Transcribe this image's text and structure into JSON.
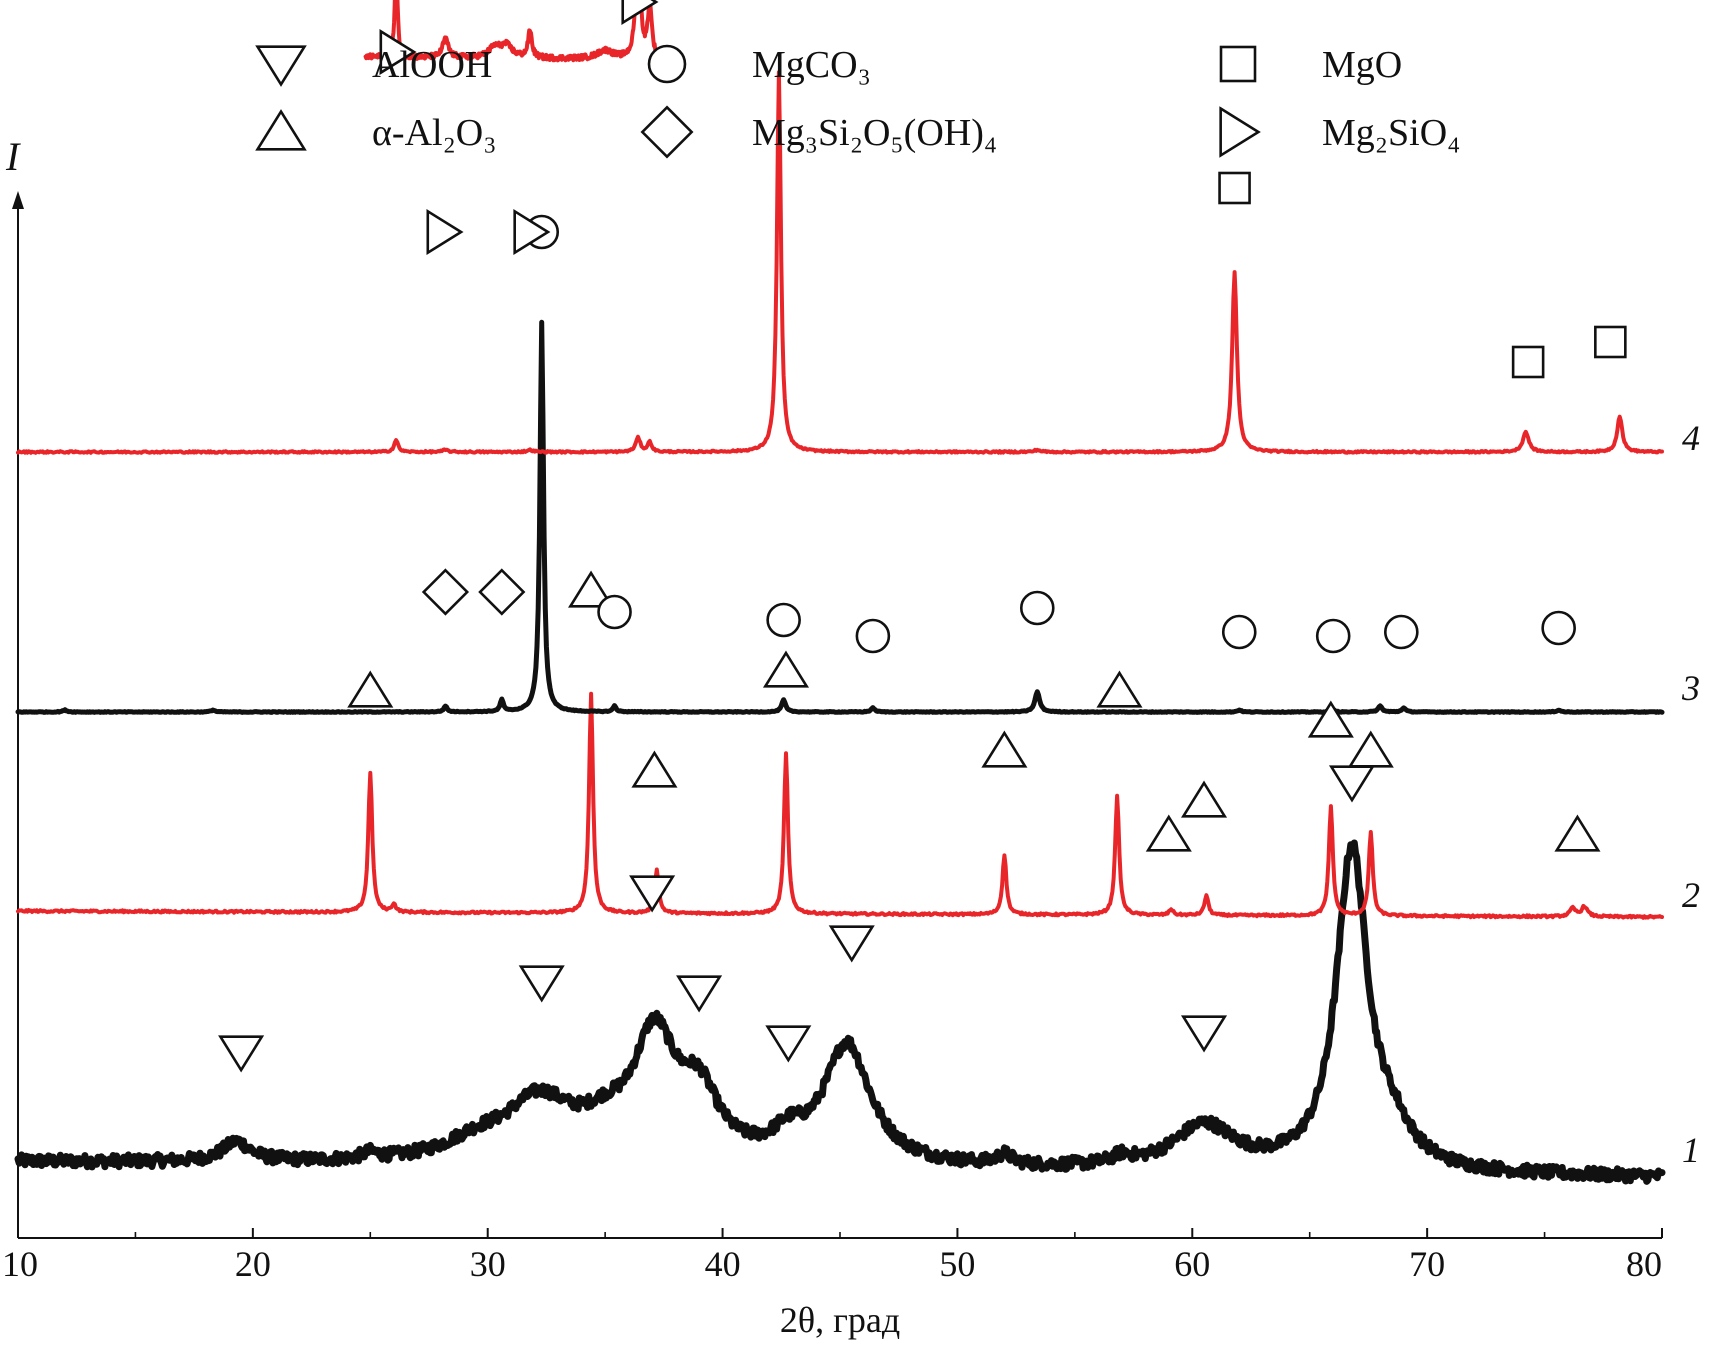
{
  "chart_data": {
    "type": "line",
    "title": "",
    "xlabel": "2θ, град",
    "ylabel": "I",
    "xlim": [
      10,
      80
    ],
    "xticks": [
      "10",
      "20",
      "30",
      "40",
      "50",
      "60",
      "70",
      "80"
    ],
    "grid": false,
    "legend_placement": "top",
    "legend": [
      {
        "marker": "triangle-down",
        "label": "AlOOH"
      },
      {
        "marker": "circle",
        "label": "MgCO₃"
      },
      {
        "marker": "square",
        "label": "MgO"
      },
      {
        "marker": "triangle-up",
        "label": "α-Al₂O₃"
      },
      {
        "marker": "diamond",
        "label": "Mg₃Si₂O₅(OH)₄"
      },
      {
        "marker": "triangle-right",
        "label": "Mg₂SiO₄"
      }
    ],
    "colors": {
      "red": "#e8262a",
      "black": "#111111"
    },
    "series": [
      {
        "name": "1",
        "color": "#111111",
        "stroke": 7,
        "noise": 0.03,
        "baseline": [
          [
            10,
            0.05
          ],
          [
            30,
            0.03
          ],
          [
            80,
            -0.03
          ]
        ],
        "peaks": [
          [
            19.3,
            0.1,
            0.7
          ],
          [
            25.0,
            0.03,
            0.4
          ],
          [
            29.5,
            0.08,
            1.6
          ],
          [
            32.2,
            0.3,
            1.8
          ],
          [
            35.0,
            0.12,
            1.2
          ],
          [
            37.1,
            0.6,
            1.1
          ],
          [
            39.0,
            0.3,
            1.0
          ],
          [
            42.8,
            0.1,
            0.8
          ],
          [
            45.3,
            0.6,
            1.2
          ],
          [
            52.0,
            0.05,
            0.4
          ],
          [
            57.0,
            0.04,
            0.5
          ],
          [
            60.5,
            0.22,
            1.6
          ],
          [
            66.8,
            1.6,
            0.8
          ],
          [
            68.5,
            0.15,
            1.0
          ]
        ],
        "markers": [
          {
            "type": "triangle-down",
            "x": 19.5,
            "y": 0.6
          },
          {
            "type": "triangle-down",
            "x": 32.3,
            "y": 0.95
          },
          {
            "type": "triangle-down",
            "x": 37.0,
            "y": 1.4
          },
          {
            "type": "triangle-down",
            "x": 39.0,
            "y": 0.9
          },
          {
            "type": "triangle-down",
            "x": 42.8,
            "y": 0.65
          },
          {
            "type": "triangle-down",
            "x": 45.5,
            "y": 1.15
          },
          {
            "type": "triangle-down",
            "x": 60.5,
            "y": 0.7
          },
          {
            "type": "triangle-down",
            "x": 66.8,
            "y": 1.95
          }
        ]
      },
      {
        "name": "2",
        "color": "#e8262a",
        "stroke": 4,
        "noise": 0.005,
        "baseline": [
          [
            10,
            0.0
          ],
          [
            80,
            -0.03
          ]
        ],
        "peaks": [
          [
            25.0,
            0.7,
            0.1
          ],
          [
            26.0,
            0.04,
            0.1
          ],
          [
            34.4,
            1.1,
            0.1
          ],
          [
            37.2,
            0.22,
            0.1
          ],
          [
            42.7,
            0.8,
            0.1
          ],
          [
            52.0,
            0.3,
            0.1
          ],
          [
            56.8,
            0.6,
            0.1
          ],
          [
            59.1,
            0.03,
            0.1
          ],
          [
            60.6,
            0.1,
            0.1
          ],
          [
            65.9,
            0.55,
            0.1
          ],
          [
            67.6,
            0.42,
            0.1
          ],
          [
            76.2,
            0.04,
            0.15
          ],
          [
            76.7,
            0.05,
            0.15
          ]
        ],
        "markers": [
          {
            "type": "triangle-up",
            "x": 25.0,
            "y": 1.1
          },
          {
            "type": "triangle-up",
            "x": 34.4,
            "y": 1.6
          },
          {
            "type": "triangle-up",
            "x": 37.1,
            "y": 0.7
          },
          {
            "type": "triangle-up",
            "x": 42.7,
            "y": 1.2
          },
          {
            "type": "triangle-up",
            "x": 52.0,
            "y": 0.8
          },
          {
            "type": "triangle-up",
            "x": 56.9,
            "y": 1.1
          },
          {
            "type": "triangle-up",
            "x": 59.0,
            "y": 0.38
          },
          {
            "type": "triangle-up",
            "x": 60.5,
            "y": 0.55
          },
          {
            "type": "triangle-up",
            "x": 65.9,
            "y": 0.95
          },
          {
            "type": "triangle-up",
            "x": 67.6,
            "y": 0.8
          },
          {
            "type": "triangle-up",
            "x": 76.4,
            "y": 0.38
          }
        ]
      },
      {
        "name": "3",
        "color": "#111111",
        "stroke": 5,
        "noise": 0.002,
        "baseline": [
          [
            10,
            0.0
          ],
          [
            80,
            0.0
          ]
        ],
        "peaks": [
          [
            12.0,
            0.01,
            0.1
          ],
          [
            18.3,
            0.01,
            0.1
          ],
          [
            28.2,
            0.03,
            0.08
          ],
          [
            30.6,
            0.06,
            0.08
          ],
          [
            32.3,
            1.95,
            0.09
          ],
          [
            35.4,
            0.03,
            0.08
          ],
          [
            42.6,
            0.06,
            0.1
          ],
          [
            46.4,
            0.02,
            0.1
          ],
          [
            53.4,
            0.1,
            0.12
          ],
          [
            62.0,
            0.01,
            0.1
          ],
          [
            66.0,
            0.01,
            0.1
          ],
          [
            68.0,
            0.03,
            0.1
          ],
          [
            69.0,
            0.02,
            0.1
          ],
          [
            75.6,
            0.01,
            0.1
          ]
        ],
        "markers": [
          {
            "type": "diamond",
            "x": 28.2,
            "y": 0.6
          },
          {
            "type": "diamond",
            "x": 30.6,
            "y": 0.6
          },
          {
            "type": "circle",
            "x": 32.3,
            "y": 2.4
          },
          {
            "type": "circle",
            "x": 35.4,
            "y": 0.5
          },
          {
            "type": "circle",
            "x": 42.6,
            "y": 0.46
          },
          {
            "type": "circle",
            "x": 46.4,
            "y": 0.38
          },
          {
            "type": "circle",
            "x": 53.4,
            "y": 0.52
          },
          {
            "type": "circle",
            "x": 62.0,
            "y": 0.4
          },
          {
            "type": "circle",
            "x": 66.0,
            "y": 0.38
          },
          {
            "type": "circle",
            "x": 68.9,
            "y": 0.4
          },
          {
            "type": "circle",
            "x": 75.6,
            "y": 0.42
          }
        ]
      },
      {
        "name": "4",
        "color": "#e8262a",
        "stroke": 4,
        "noise": 0.004,
        "baseline": [
          [
            10,
            0.0
          ],
          [
            80,
            0.0
          ]
        ],
        "peaks": [
          [
            26.1,
            0.06,
            0.1
          ],
          [
            28.2,
            0.01,
            0.15
          ],
          [
            31.8,
            0.01,
            0.15
          ],
          [
            36.4,
            0.07,
            0.12
          ],
          [
            36.9,
            0.05,
            0.1
          ],
          [
            42.4,
            1.9,
            0.1
          ],
          [
            53.4,
            0.01,
            0.15
          ],
          [
            61.8,
            0.9,
            0.12
          ],
          [
            74.2,
            0.1,
            0.15
          ],
          [
            78.2,
            0.18,
            0.13
          ]
        ],
        "markers": [
          {
            "type": "triangle-right",
            "x": 26.1,
            "y": 2.0
          },
          {
            "type": "triangle-right",
            "x": 28.1,
            "y": 1.1
          },
          {
            "type": "triangle-right",
            "x": 31.8,
            "y": 1.1
          },
          {
            "type": "triangle-right",
            "x": 36.4,
            "y": 2.25
          },
          {
            "type": "square",
            "x": 42.4,
            "y": 2.35
          },
          {
            "type": "square",
            "x": 61.8,
            "y": 1.32
          },
          {
            "type": "square",
            "x": 74.3,
            "y": 0.45
          },
          {
            "type": "square",
            "x": 77.8,
            "y": 0.55
          }
        ]
      }
    ],
    "inset": {
      "series": "4",
      "xlim": [
        24.8,
        37.7
      ],
      "color": "#e8262a",
      "stroke": 4,
      "noise": 0.03,
      "baseline": [
        [
          24.8,
          0.55
        ],
        [
          37.7,
          0.52
        ]
      ],
      "peaks": [
        [
          26.1,
          1.1,
          0.07
        ],
        [
          28.2,
          0.22,
          0.15
        ],
        [
          30.3,
          0.12,
          0.3
        ],
        [
          30.8,
          0.14,
          0.3
        ],
        [
          31.8,
          0.32,
          0.1
        ],
        [
          35.0,
          0.1,
          0.4
        ],
        [
          36.4,
          1.65,
          0.1
        ],
        [
          36.9,
          0.65,
          0.1
        ]
      ]
    }
  }
}
